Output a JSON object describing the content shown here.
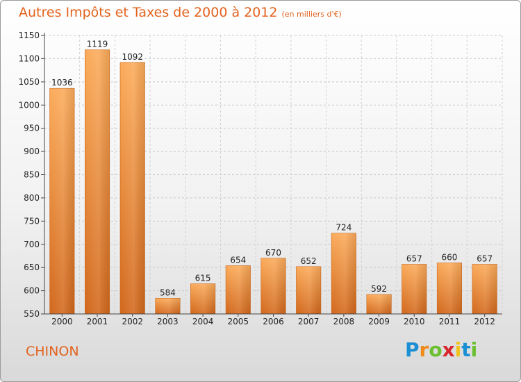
{
  "title": "Autres Impôts et Taxes de 2000 à 2012",
  "subtitle": "(en milliers d'€)",
  "place": "CHINON",
  "brand": {
    "letters": [
      "P",
      "r",
      "o",
      "x",
      "i",
      "t",
      "i"
    ],
    "colors": [
      "#1b8fd4",
      "#f08a1a",
      "#6abf2e",
      "#d8262e",
      "#f2c21b",
      "#1b8fd4",
      "#6abf2e"
    ]
  },
  "chart_data": {
    "type": "bar",
    "categories": [
      "2000",
      "2001",
      "2002",
      "2003",
      "2004",
      "2005",
      "2006",
      "2007",
      "2008",
      "2009",
      "2010",
      "2011",
      "2012"
    ],
    "values": [
      1036,
      1119,
      1092,
      584,
      615,
      654,
      670,
      652,
      724,
      592,
      657,
      660,
      657
    ],
    "ylim": [
      550,
      1150
    ],
    "yticks": [
      550,
      600,
      650,
      700,
      750,
      800,
      850,
      900,
      950,
      1000,
      1050,
      1100,
      1150
    ],
    "grid": "horizontal dashed",
    "bar_color": "#f08a30",
    "title": "Autres Impôts et Taxes de 2000 à 2012",
    "xlabel": "",
    "ylabel": ""
  }
}
